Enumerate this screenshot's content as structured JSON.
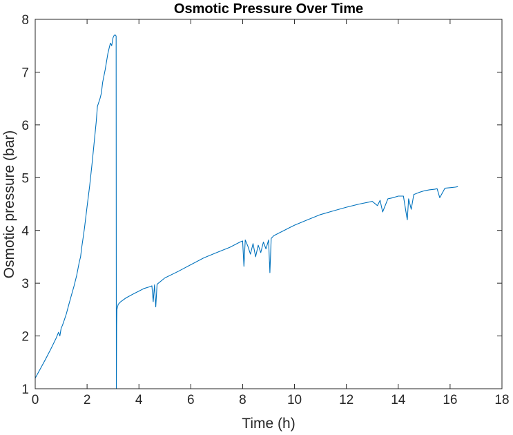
{
  "chart_data": {
    "type": "line",
    "title": "Osmotic Pressure Over Time",
    "xlabel": "Time (h)",
    "ylabel": "Osmotic pressure (bar)",
    "xlim": [
      0,
      18
    ],
    "ylim": [
      1,
      8
    ],
    "xticks": [
      "0",
      "2",
      "4",
      "6",
      "8",
      "10",
      "12",
      "14",
      "16",
      "18"
    ],
    "yticks": [
      "1",
      "2",
      "3",
      "4",
      "5",
      "6",
      "7",
      "8"
    ],
    "grid": false,
    "box": true,
    "line_color": "#0072BD",
    "series": [
      {
        "x": [
          0,
          0.2,
          0.4,
          0.6,
          0.8,
          0.9,
          0.95,
          1.0,
          1.05,
          1.1,
          1.2,
          1.3,
          1.4,
          1.5,
          1.6,
          1.7,
          1.75,
          1.8,
          1.85,
          1.9,
          2.0,
          2.1,
          2.2,
          2.3,
          2.35,
          2.4,
          2.5,
          2.55,
          2.6,
          2.7,
          2.8,
          2.85,
          2.9,
          2.95,
          3.0,
          3.05,
          3.1,
          3.12,
          3.13,
          3.14,
          3.15,
          3.2,
          3.3,
          3.5,
          3.8,
          4.0,
          4.2,
          4.4,
          4.5,
          4.55,
          4.6,
          4.65,
          4.7,
          4.8,
          5.0,
          5.5,
          6.0,
          6.5,
          7.0,
          7.5,
          7.9,
          8.0,
          8.05,
          8.1,
          8.2,
          8.3,
          8.4,
          8.5,
          8.6,
          8.7,
          8.8,
          8.9,
          9.0,
          9.05,
          9.1,
          9.2,
          9.4,
          9.6,
          9.8,
          10.0,
          10.5,
          11.0,
          11.5,
          12.0,
          12.5,
          13.0,
          13.2,
          13.3,
          13.4,
          13.6,
          13.8,
          14.0,
          14.2,
          14.3,
          14.35,
          14.4,
          14.5,
          14.6,
          14.8,
          15.0,
          15.2,
          15.4,
          15.5,
          15.6,
          15.8,
          16.0,
          16.2,
          16.3
        ],
        "y": [
          1.2,
          1.38,
          1.56,
          1.75,
          1.95,
          2.07,
          2.0,
          2.15,
          2.2,
          2.27,
          2.42,
          2.6,
          2.78,
          2.95,
          3.15,
          3.4,
          3.5,
          3.7,
          3.87,
          4.05,
          4.45,
          4.85,
          5.3,
          5.8,
          6.05,
          6.35,
          6.5,
          6.6,
          6.8,
          7.05,
          7.35,
          7.45,
          7.55,
          7.5,
          7.65,
          7.7,
          7.7,
          7.68,
          1.0,
          2.2,
          2.5,
          2.6,
          2.65,
          2.72,
          2.8,
          2.85,
          2.9,
          2.93,
          2.95,
          2.65,
          2.97,
          2.55,
          2.98,
          3.02,
          3.1,
          3.22,
          3.35,
          3.48,
          3.58,
          3.68,
          3.78,
          3.8,
          3.32,
          3.82,
          3.7,
          3.55,
          3.75,
          3.5,
          3.72,
          3.58,
          3.78,
          3.65,
          3.82,
          3.2,
          3.85,
          3.9,
          3.95,
          4.0,
          4.05,
          4.1,
          4.2,
          4.3,
          4.37,
          4.44,
          4.5,
          4.55,
          4.47,
          4.57,
          4.35,
          4.6,
          4.62,
          4.65,
          4.65,
          4.35,
          4.2,
          4.6,
          4.4,
          4.68,
          4.72,
          4.75,
          4.77,
          4.78,
          4.79,
          4.62,
          4.8,
          4.81,
          4.82,
          4.83
        ]
      }
    ]
  }
}
